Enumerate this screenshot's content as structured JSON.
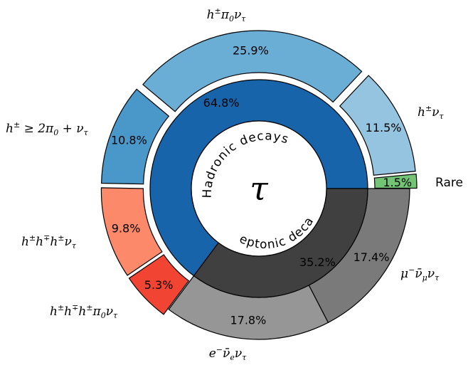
{
  "chart_data": {
    "type": "pie",
    "center_label": "τ",
    "inner": [
      {
        "label": "Hadronic decays",
        "pct_label": "64.8%",
        "value": 64.8,
        "color": "#1764ab"
      },
      {
        "label": "Leptonic decay",
        "pct_label": "35.2%",
        "value": 35.2,
        "color": "#404040"
      }
    ],
    "outer": [
      {
        "name": "Rare",
        "pct_label": "1.5%",
        "value": 1.5,
        "color": "#74c476",
        "group": "hadronic"
      },
      {
        "name": "h±ντ",
        "pct_label": "11.5%",
        "value": 11.5,
        "color": "#94c4df",
        "group": "hadronic"
      },
      {
        "name": "h±π0ντ",
        "pct_label": "25.9%",
        "value": 25.9,
        "color": "#6aaed6",
        "group": "hadronic"
      },
      {
        "name": "h±≥2π0+ντ",
        "pct_label": "10.8%",
        "value": 10.8,
        "color": "#4a98c9",
        "group": "hadronic"
      },
      {
        "name": "h±h∓h±ντ",
        "pct_label": "9.8%",
        "value": 9.8,
        "color": "#fc8a6a",
        "group": "hadronic"
      },
      {
        "name": "h±h∓h±π0ντ",
        "pct_label": "5.3%",
        "value": 5.3,
        "color": "#f14432",
        "group": "hadronic"
      },
      {
        "name": "e−ν̄eντ",
        "pct_label": "17.8%",
        "value": 17.8,
        "color": "#969696",
        "group": "leptonic"
      },
      {
        "name": "μ−ν̄μντ",
        "pct_label": "17.4%",
        "value": 17.4,
        "color": "#7a7a7a",
        "group": "leptonic"
      }
    ]
  }
}
